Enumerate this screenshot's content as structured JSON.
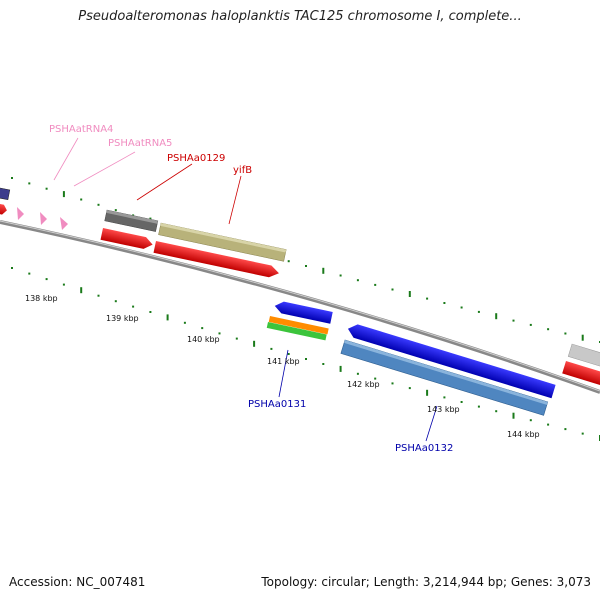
{
  "title": "Pseudoalteromonas haloplanktis TAC125 chromosome I, complete...",
  "footer": {
    "accession": "Accession: NC_007481",
    "summary": "Topology: circular; Length: 3,214,944 bp; Genes: 3,073"
  },
  "ticks": [
    "138 kbp",
    "139 kbp",
    "140 kbp",
    "141 kbp",
    "142 kbp",
    "143 kbp",
    "144 kbp"
  ],
  "labels": {
    "trna4": "PSHAatRNA4",
    "trna5": "PSHAatRNA5",
    "a0129": "PSHAa0129",
    "yifb": "yifB",
    "a0131": "PSHAa0131",
    "a0132": "PSHAa0132"
  },
  "colors": {
    "trna": "#f08cc0",
    "red_feature": "#ff0000",
    "red_label": "#cc0000",
    "blue_label": "#0000aa",
    "gray_gene": "#666666",
    "olive_gene": "#b8b27a",
    "blue_gene": "#0000ee",
    "steel_gene": "#4f86c0",
    "orange_gene": "#ff8c00",
    "green_gene": "#3cc43c",
    "navy_gene": "#3c3c8c",
    "silver_gene": "#c8c8c8",
    "backbone": "#777777",
    "tick_green": "#1a7a1a"
  }
}
